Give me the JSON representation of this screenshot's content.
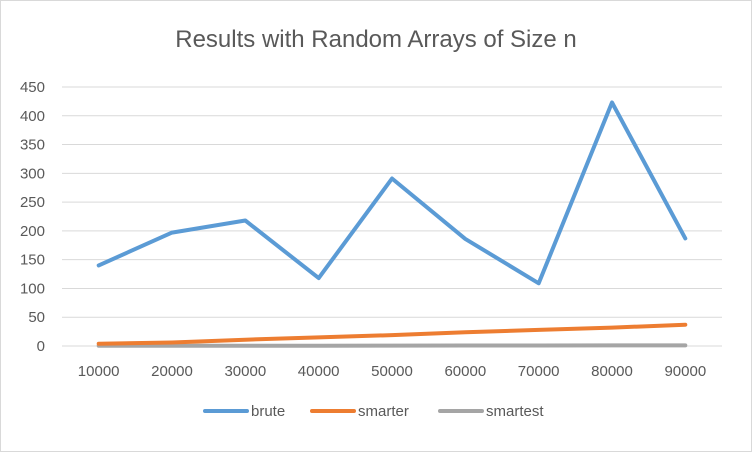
{
  "chart_data": {
    "type": "line",
    "title": "Results with Random Arrays of Size n",
    "xlabel": "",
    "ylabel": "",
    "categories": [
      "10000",
      "20000",
      "30000",
      "40000",
      "50000",
      "60000",
      "70000",
      "80000",
      "90000"
    ],
    "ylim": [
      0,
      450
    ],
    "yticks": [
      0,
      50,
      100,
      150,
      200,
      250,
      300,
      350,
      400,
      450
    ],
    "grid": true,
    "legend": "bottom",
    "series": [
      {
        "name": "brute",
        "color": "#5B9BD5",
        "values": [
          140,
          197,
          218,
          118,
          291,
          186,
          109,
          423,
          187
        ]
      },
      {
        "name": "smarter",
        "color": "#ED7D31",
        "values": [
          4,
          6,
          11,
          15,
          19,
          24,
          28,
          32,
          37
        ]
      },
      {
        "name": "smartest",
        "color": "#A5A5A5",
        "values": [
          0.3,
          0.4,
          0.5,
          0.6,
          0.7,
          0.8,
          0.9,
          1.0,
          1.1
        ]
      }
    ]
  }
}
